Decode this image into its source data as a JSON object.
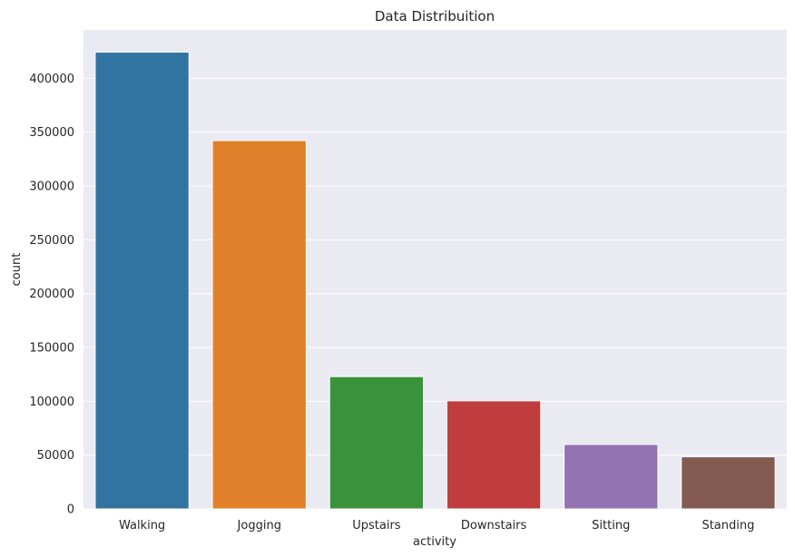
{
  "chart_data": {
    "type": "bar",
    "title": "Data Distribuition",
    "xlabel": "activity",
    "ylabel": "count",
    "categories": [
      "Walking",
      "Jogging",
      "Upstairs",
      "Downstairs",
      "Sitting",
      "Standing"
    ],
    "values": [
      424400,
      342200,
      122900,
      100400,
      59900,
      48400
    ],
    "colors": [
      "#3274a1",
      "#e1812c",
      "#3a923a",
      "#c03d3e",
      "#9372b2",
      "#845b53"
    ],
    "ylim": [
      0,
      445000
    ],
    "yticks": [
      0,
      50000,
      100000,
      150000,
      200000,
      250000,
      300000,
      350000,
      400000
    ],
    "ytick_labels": [
      "0",
      "50000",
      "100000",
      "150000",
      "200000",
      "250000",
      "300000",
      "350000",
      "400000"
    ],
    "grid": true,
    "background": "#eaeaf2"
  }
}
